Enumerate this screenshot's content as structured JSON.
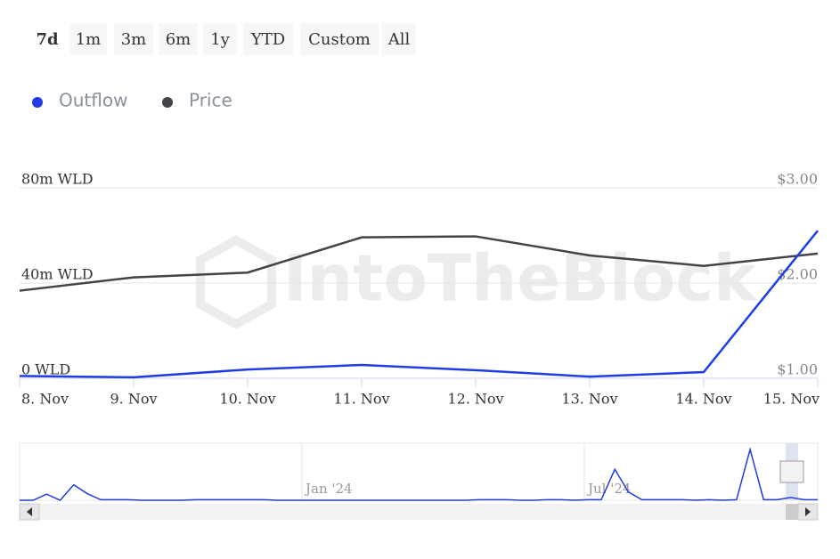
{
  "range_buttons": [
    "7d",
    "1m",
    "3m",
    "6m",
    "1y",
    "YTD",
    "Custom",
    "All"
  ],
  "watermark": "IntoTheBlock",
  "chart_data": {
    "type": "line",
    "categories": [
      "8. Nov",
      "9. Nov",
      "10. Nov",
      "11. Nov",
      "12. Nov",
      "13. Nov",
      "14. Nov",
      "15. Nov"
    ],
    "series": [
      {
        "name": "Outflow",
        "color": "#1f3de3",
        "values": [
          1,
          0.4,
          3.7,
          5.6,
          3.4,
          0.7,
          2.6,
          62
        ]
      },
      {
        "name": "Price",
        "color": "#434348",
        "axis": "y2",
        "values": [
          1.92,
          2.06,
          2.11,
          2.48,
          2.49,
          2.29,
          2.18,
          2.31
        ]
      }
    ],
    "ylim": [
      0,
      80
    ],
    "yticks": [
      {
        "value": 0,
        "label": "0 WLD"
      },
      {
        "value": 40,
        "label": "40m WLD"
      },
      {
        "value": 80,
        "label": "80m WLD"
      }
    ],
    "y2lim": [
      1,
      3
    ],
    "y2ticks": [
      {
        "value": 1,
        "label": "$1.00"
      },
      {
        "value": 2,
        "label": "$2.00"
      },
      {
        "value": 3,
        "label": "$3.00"
      }
    ],
    "grid": true,
    "navigator": {
      "labels": [
        "Jan '24",
        "Jul '24"
      ],
      "ylim": [
        0,
        100
      ],
      "values": [
        0,
        0,
        11,
        0,
        28,
        12,
        1,
        1,
        1,
        0,
        0,
        0,
        0,
        1,
        1,
        1,
        1,
        1,
        1,
        0,
        0,
        0,
        0,
        0,
        0,
        0,
        0,
        0,
        0,
        0,
        0,
        0,
        0,
        0,
        1,
        1,
        1,
        0,
        0,
        1,
        1,
        0,
        1,
        1,
        56,
        15,
        1,
        1,
        1,
        1,
        0,
        1,
        0,
        1,
        92,
        1,
        1,
        5,
        1,
        1
      ]
    }
  }
}
